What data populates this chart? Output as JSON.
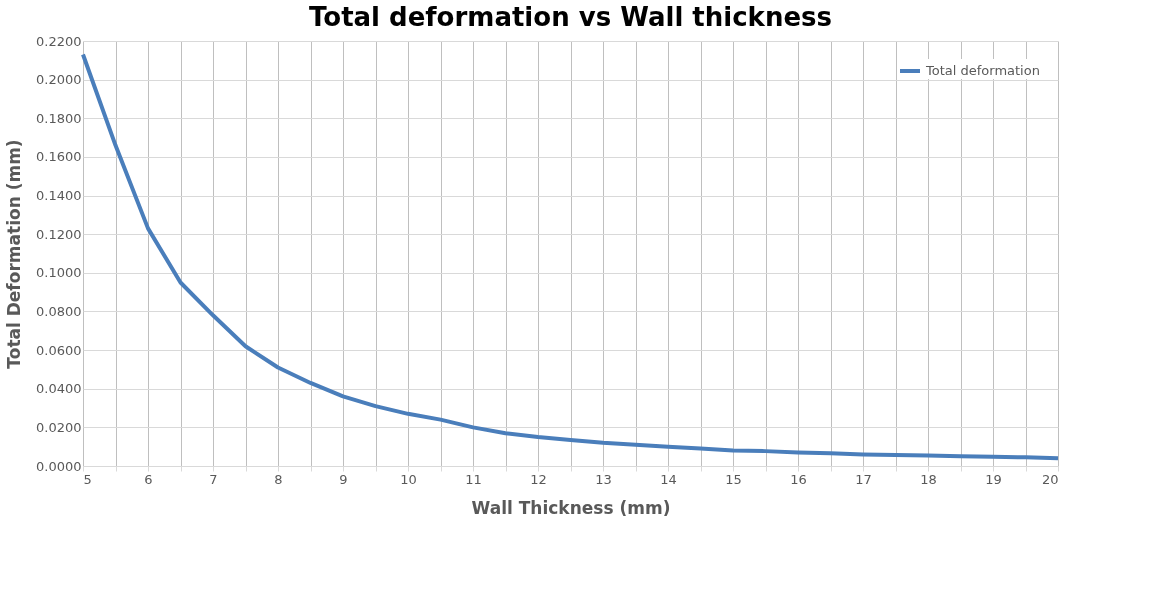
{
  "chart_data": {
    "type": "line",
    "title": "Total deformation vs Wall thickness",
    "xlabel": "Wall Thickness (mm)",
    "ylabel": "Total Deformation (mm)",
    "x": [
      5,
      5.5,
      6,
      6.5,
      7,
      7.5,
      8,
      8.5,
      9,
      9.5,
      10,
      10.5,
      11,
      11.5,
      12,
      12.5,
      13,
      13.5,
      14,
      14.5,
      15,
      15.5,
      16,
      16.5,
      17,
      17.5,
      18,
      18.5,
      19,
      19.5,
      20
    ],
    "series": [
      {
        "name": "Total deformation",
        "color": "#4a7ebb",
        "values": [
          0.213,
          0.166,
          0.123,
          0.095,
          0.078,
          0.062,
          0.051,
          0.043,
          0.036,
          0.031,
          0.027,
          0.024,
          0.02,
          0.017,
          0.015,
          0.0135,
          0.012,
          0.011,
          0.01,
          0.009,
          0.008,
          0.0077,
          0.007,
          0.0066,
          0.006,
          0.0057,
          0.0054,
          0.005,
          0.0048,
          0.0045,
          0.004
        ]
      }
    ],
    "xlim": [
      5,
      20
    ],
    "xticks": [
      5,
      {
        "value": 5.5,
        "label": null
      },
      6,
      {
        "value": 6.5,
        "label": null
      },
      7,
      {
        "value": 7.5,
        "label": null
      },
      8,
      {
        "value": 8.5,
        "label": null
      },
      9,
      {
        "value": 9.5,
        "label": null
      },
      10,
      {
        "value": 10.5,
        "label": null
      },
      11,
      {
        "value": 11.5,
        "label": null
      },
      12,
      {
        "value": 12.5,
        "label": null
      },
      13,
      {
        "value": 13.5,
        "label": null
      },
      14,
      {
        "value": 14.5,
        "label": null
      },
      15,
      {
        "value": 15.5,
        "label": null
      },
      16,
      {
        "value": 16.5,
        "label": null
      },
      17,
      {
        "value": 17.5,
        "label": null
      },
      18,
      {
        "value": 18.5,
        "label": null
      },
      19,
      {
        "value": 19.5,
        "label": null
      },
      20
    ],
    "ylim": [
      0,
      0.22
    ],
    "yticks": [
      {
        "value": 0,
        "label": "0.0000"
      },
      {
        "value": 0.02,
        "label": "0.0200"
      },
      {
        "value": 0.04,
        "label": "0.0400"
      },
      {
        "value": 0.06,
        "label": "0.0600"
      },
      {
        "value": 0.08,
        "label": "0.0800"
      },
      {
        "value": 0.1,
        "label": "0.1000"
      },
      {
        "value": 0.12,
        "label": "0.1200"
      },
      {
        "value": 0.14,
        "label": "0.1400"
      },
      {
        "value": 0.16,
        "label": "0.1600"
      },
      {
        "value": 0.18,
        "label": "0.1800"
      },
      {
        "value": 0.2,
        "label": "0.2000"
      },
      {
        "value": 0.22,
        "label": "0.2200"
      }
    ],
    "grid": true,
    "legend": "top right",
    "marker": "none",
    "line_style": "solid"
  }
}
